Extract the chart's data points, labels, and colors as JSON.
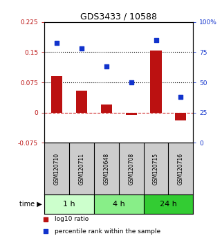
{
  "title": "GDS3433 / 10588",
  "samples": [
    "GSM120710",
    "GSM120711",
    "GSM120648",
    "GSM120708",
    "GSM120715",
    "GSM120716"
  ],
  "log10_ratio": [
    0.09,
    0.055,
    0.02,
    -0.005,
    0.155,
    -0.02
  ],
  "percentile_rank": [
    83,
    78,
    63,
    50,
    85,
    38
  ],
  "ylim_left": [
    -0.075,
    0.225
  ],
  "ylim_right": [
    0,
    100
  ],
  "yticks_left": [
    -0.075,
    0,
    0.075,
    0.15,
    0.225
  ],
  "yticks_right": [
    0,
    25,
    50,
    75,
    100
  ],
  "ytick_labels_left": [
    "-0.075",
    "0",
    "0.075",
    "0.15",
    "0.225"
  ],
  "ytick_labels_right": [
    "0",
    "25",
    "50",
    "75",
    "100%"
  ],
  "hlines_dotted": [
    0.075,
    0.15
  ],
  "hline_dashed_color": "#cc2222",
  "bar_color": "#bb1111",
  "square_color": "#1133cc",
  "sample_bg": "#cccccc",
  "time_groups": [
    {
      "label": "1 h",
      "samples": [
        0,
        1
      ],
      "color": "#ccffcc"
    },
    {
      "label": "4 h",
      "samples": [
        2,
        3
      ],
      "color": "#88ee88"
    },
    {
      "label": "24 h",
      "samples": [
        4,
        5
      ],
      "color": "#33cc33"
    }
  ],
  "time_label": "time",
  "legend_entries": [
    "log10 ratio",
    "percentile rank within the sample"
  ],
  "background_color": "#ffffff"
}
